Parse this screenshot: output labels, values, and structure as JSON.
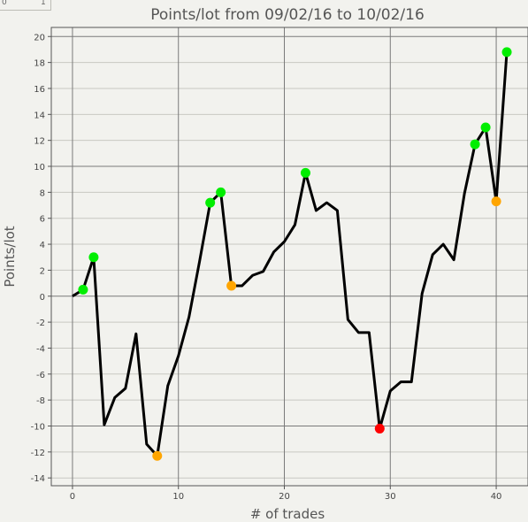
{
  "corner_labels": [
    "0",
    "1"
  ],
  "chart_data": {
    "type": "line",
    "title": "Points/lot from 09/02/16 to 10/02/16",
    "xlabel": "# of trades",
    "ylabel": "Points/lot",
    "xlim": [
      -2,
      43
    ],
    "ylim": [
      -14.6,
      20.7
    ],
    "x_major_ticks": [
      0,
      10,
      20,
      30,
      40
    ],
    "y_ticks": [
      -14,
      -12,
      -10,
      -8,
      -6,
      -4,
      -2,
      0,
      2,
      4,
      6,
      8,
      10,
      12,
      14,
      16,
      18,
      20
    ],
    "y_major_ticks": [
      -10,
      0,
      10,
      20
    ],
    "grid": true,
    "line_color": "#000000",
    "x": [
      0,
      1,
      2,
      3,
      4,
      5,
      6,
      7,
      8,
      9,
      10,
      11,
      12,
      13,
      14,
      15,
      16,
      17,
      18,
      19,
      20,
      21,
      22,
      23,
      24,
      25,
      26,
      27,
      28,
      29,
      30,
      31,
      32,
      33,
      34,
      35,
      36,
      37,
      38,
      39,
      40,
      41
    ],
    "y": [
      0,
      0.5,
      3.0,
      -9.9,
      -7.8,
      -7.1,
      -2.9,
      -11.4,
      -12.3,
      -6.9,
      -4.6,
      -1.6,
      2.7,
      7.2,
      8.0,
      0.8,
      0.8,
      1.6,
      1.9,
      3.4,
      4.2,
      5.5,
      9.5,
      6.6,
      7.2,
      6.6,
      -1.8,
      -2.8,
      -2.8,
      -10.2,
      -7.3,
      -6.6,
      -6.6,
      0.2,
      3.2,
      4.0,
      2.8,
      7.9,
      11.7,
      13.0,
      7.3,
      18.8
    ],
    "markers": [
      {
        "x": 1,
        "y": 0.5,
        "color": "#00ee00"
      },
      {
        "x": 2,
        "y": 3.0,
        "color": "#00ee00"
      },
      {
        "x": 8,
        "y": -12.3,
        "color": "#ffa500"
      },
      {
        "x": 13,
        "y": 7.2,
        "color": "#00ee00"
      },
      {
        "x": 14,
        "y": 8.0,
        "color": "#00ee00"
      },
      {
        "x": 15,
        "y": 0.8,
        "color": "#ffa500"
      },
      {
        "x": 22,
        "y": 9.5,
        "color": "#00ee00"
      },
      {
        "x": 29,
        "y": -10.2,
        "color": "#ff0000"
      },
      {
        "x": 38,
        "y": 11.7,
        "color": "#00ee00"
      },
      {
        "x": 39,
        "y": 13.0,
        "color": "#00ee00"
      },
      {
        "x": 40,
        "y": 7.3,
        "color": "#ffa500"
      },
      {
        "x": 41,
        "y": 18.8,
        "color": "#00ee00"
      }
    ]
  }
}
